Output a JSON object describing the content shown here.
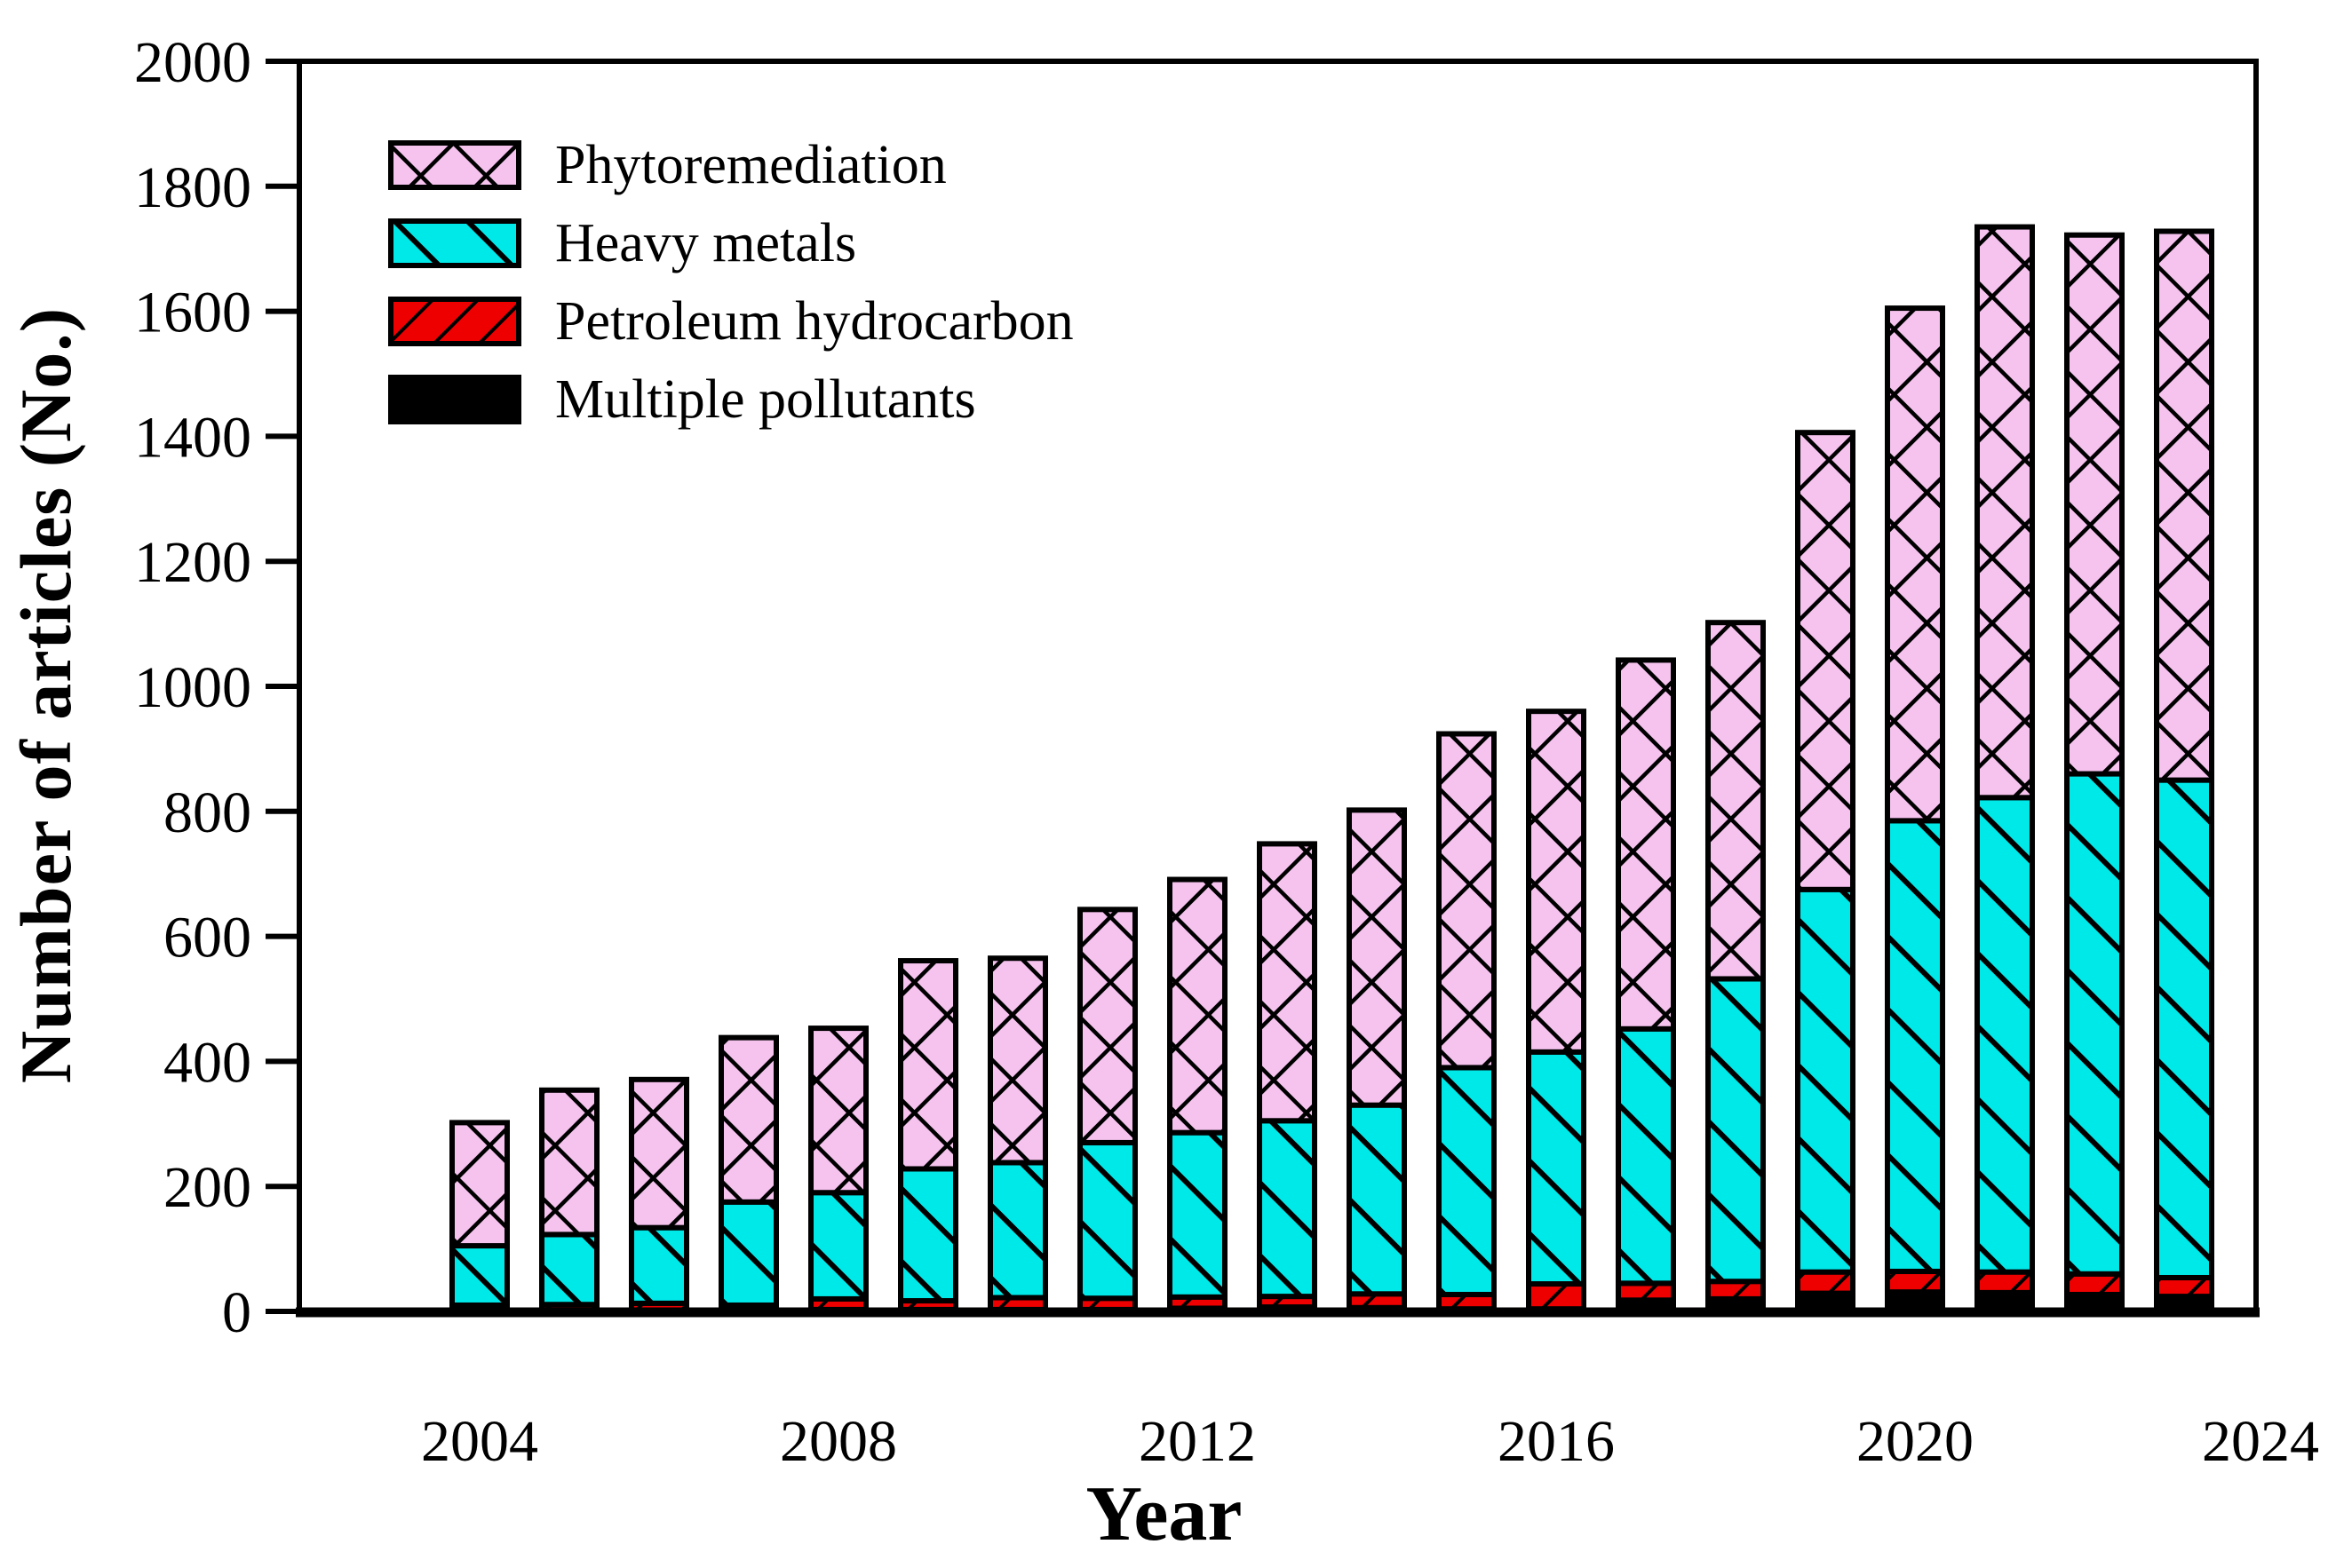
{
  "chart_data": {
    "type": "bar",
    "stacked": true,
    "xlabel": "Year",
    "ylabel": "Number of articles (No.)",
    "ylim": [
      0,
      2000
    ],
    "y_tick_step": 200,
    "y_tick_labels": [
      "0",
      "200",
      "400",
      "600",
      "800",
      "1000",
      "1200",
      "1400",
      "1600",
      "1800",
      "2000"
    ],
    "x_tick_labels": [
      "2004",
      "2008",
      "2012",
      "2016",
      "2020",
      "2024"
    ],
    "x_tick_years": [
      2004,
      2008,
      2012,
      2016,
      2020,
      2024
    ],
    "grid": false,
    "legend_position": "top-left",
    "categories": [
      2004,
      2005,
      2006,
      2007,
      2008,
      2009,
      2010,
      2011,
      2012,
      2013,
      2014,
      2015,
      2016,
      2017,
      2018,
      2019,
      2020,
      2021,
      2022,
      2023
    ],
    "series": [
      {
        "name": "Multiple pollutants",
        "color": "#000000",
        "pattern": "solid",
        "values": [
          2,
          2,
          2,
          10,
          3,
          3,
          3,
          3,
          5,
          7,
          6,
          4,
          4,
          18,
          20,
          29,
          31,
          30,
          27,
          24
        ]
      },
      {
        "name": "Petroleum hydrocarbon",
        "color": "#ee0000",
        "pattern": "diagonal-up",
        "values": [
          8,
          9,
          11,
          0,
          17,
          14,
          19,
          18,
          18,
          17,
          22,
          23,
          40,
          27,
          28,
          34,
          33,
          33,
          33,
          30
        ]
      },
      {
        "name": "Heavy metals",
        "color": "#00e9e9",
        "pattern": "diagonal-down",
        "values": [
          95,
          112,
          121,
          165,
          170,
          211,
          216,
          249,
          263,
          281,
          302,
          363,
          371,
          407,
          484,
          612,
          721,
          759,
          800,
          796
        ]
      },
      {
        "name": "Phytoremediation",
        "color": "#f6c3ef",
        "pattern": "crosshatch",
        "values": [
          197,
          231,
          237,
          263,
          263,
          333,
          327,
          373,
          405,
          443,
          472,
          534,
          545,
          590,
          570,
          731,
          820,
          913,
          862,
          878
        ]
      }
    ],
    "totals": [
      302,
      354,
      371,
      438,
      453,
      561,
      565,
      643,
      691,
      748,
      802,
      924,
      960,
      1042,
      1102,
      1406,
      1605,
      1735,
      1722,
      1728
    ],
    "legend_items": [
      {
        "label": "Phytoremediation",
        "pattern": "crosshatch",
        "color": "#f6c3ef"
      },
      {
        "label": "Heavy metals",
        "pattern": "diagonal-down",
        "color": "#00e9e9"
      },
      {
        "label": "Petroleum hydrocarbon",
        "pattern": "diagonal-up",
        "color": "#ee0000"
      },
      {
        "label": "Multiple pollutants",
        "pattern": "solid",
        "color": "#000000"
      }
    ]
  }
}
